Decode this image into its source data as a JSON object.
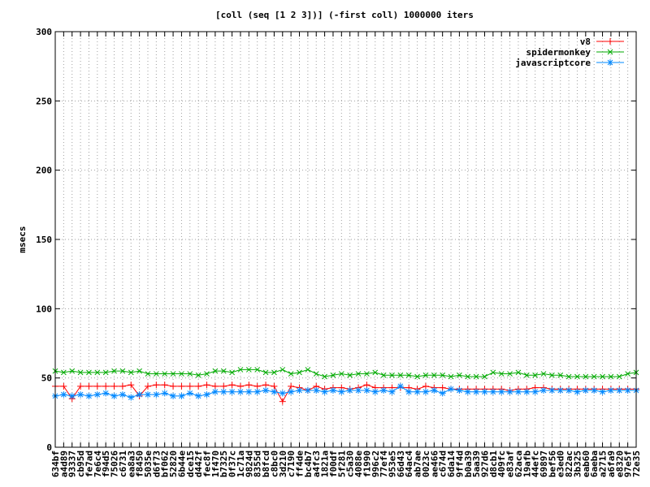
{
  "chart_data": {
    "type": "line",
    "title": "[coll (seq [1 2 3])] (-first coll) 1000000 iters",
    "xlabel": "",
    "ylabel": "msecs",
    "ylim": [
      0,
      300
    ],
    "yticks": [
      0,
      50,
      100,
      150,
      200,
      250,
      300
    ],
    "grid": true,
    "legend_position": "top-right",
    "categories": [
      "634bf",
      "a4d89",
      "93337",
      "cb95d",
      "fe7ad",
      "7e6c4",
      "f94d5",
      "75026",
      "c6731",
      "ea8a3",
      "f8450",
      "5035e",
      "d6f73",
      "bf062",
      "52820",
      "6b44e",
      "dce15",
      "d442f",
      "fec8f",
      "1f470",
      "b7325",
      "0f37c",
      "1c71a",
      "9824d",
      "8355d",
      "b8fcd",
      "c8bc0",
      "3d210",
      "c7190",
      "ff4de",
      "bc4b7",
      "a4fc3",
      "1821a",
      "f00df",
      "5f281",
      "c5a30",
      "4088e",
      "f1990",
      "996c2",
      "77ef4",
      "953e5",
      "66d43",
      "64ac4",
      "ab7ae",
      "0023c",
      "ae466",
      "c674d",
      "6da14",
      "9ff4d",
      "b0a39",
      "5aa39",
      "927d6",
      "d8cb1",
      "409fc",
      "e83af",
      "62aca",
      "19afb",
      "44efc",
      "69897",
      "bef56",
      "e3ed0",
      "822ac",
      "3b325",
      "eab60",
      "6aeba",
      "a2715",
      "a6fa9",
      "e8320",
      "97e5f",
      "72e35"
    ],
    "series": [
      {
        "name": "v8",
        "color": "#ff0000",
        "marker": "plus",
        "values": [
          44,
          44,
          35,
          44,
          44,
          44,
          44,
          44,
          44,
          45,
          37,
          44,
          45,
          45,
          44,
          44,
          44,
          44,
          45,
          44,
          44,
          45,
          44,
          45,
          44,
          45,
          44,
          33,
          44,
          43,
          41,
          44,
          42,
          43,
          43,
          42,
          43,
          45,
          43,
          43,
          43,
          43,
          43,
          42,
          44,
          43,
          43,
          42,
          42,
          42,
          42,
          42,
          42,
          42,
          41,
          42,
          42,
          43,
          43,
          42,
          42,
          42,
          42,
          42,
          42,
          42,
          42,
          42,
          42,
          42
        ]
      },
      {
        "name": "spidermonkey",
        "color": "#00aa00",
        "marker": "x",
        "values": [
          55,
          54,
          55,
          54,
          54,
          54,
          54,
          55,
          55,
          54,
          55,
          53,
          53,
          53,
          53,
          53,
          53,
          52,
          53,
          55,
          55,
          54,
          56,
          56,
          56,
          54,
          54,
          56,
          53,
          54,
          56,
          53,
          51,
          52,
          53,
          52,
          53,
          53,
          54,
          52,
          52,
          52,
          52,
          51,
          52,
          52,
          52,
          51,
          52,
          51,
          51,
          51,
          54,
          53,
          53,
          54,
          52,
          52,
          53,
          52,
          52,
          51,
          51,
          51,
          51,
          51,
          51,
          51,
          53,
          54
        ]
      },
      {
        "name": "javascriptcore",
        "color": "#0088ff",
        "marker": "star",
        "values": [
          37,
          38,
          37,
          38,
          37,
          38,
          39,
          37,
          38,
          36,
          38,
          38,
          38,
          39,
          37,
          37,
          39,
          37,
          38,
          40,
          40,
          40,
          40,
          40,
          40,
          41,
          40,
          39,
          40,
          41,
          41,
          41,
          40,
          41,
          40,
          41,
          41,
          41,
          40,
          41,
          40,
          44,
          40,
          40,
          40,
          41,
          39,
          42,
          41,
          40,
          40,
          40,
          40,
          40,
          40,
          40,
          40,
          40,
          41,
          41,
          41,
          41,
          40,
          41,
          41,
          40,
          41,
          41,
          41,
          41
        ]
      }
    ]
  }
}
